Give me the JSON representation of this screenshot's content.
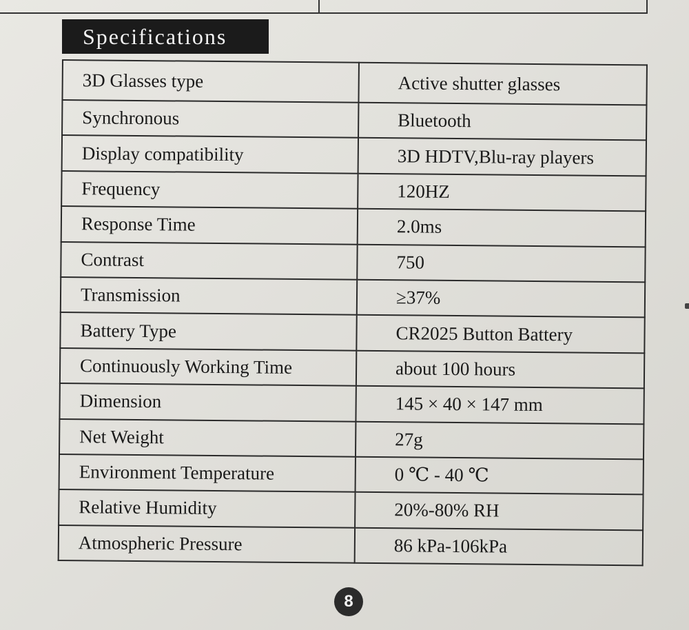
{
  "section_title": "Specifications",
  "specs": [
    {
      "label": "3D Glasses type",
      "value": "Active shutter glasses"
    },
    {
      "label": "Synchronous",
      "value": "Bluetooth"
    },
    {
      "label": "Display compatibility",
      "value": "3D HDTV,Blu-ray players"
    },
    {
      "label": "Frequency",
      "value": "120HZ"
    },
    {
      "label": "Response Time",
      "value": "2.0ms"
    },
    {
      "label": "Contrast",
      "value": "750"
    },
    {
      "label": "Transmission",
      "value": "≥37%"
    },
    {
      "label": "Battery Type",
      "value": "CR2025 Button Battery"
    },
    {
      "label": "Continuously Working Time",
      "value": "about 100 hours"
    },
    {
      "label": "Dimension",
      "value": "145 × 40 × 147 mm"
    },
    {
      "label": "Net Weight",
      "value": "27g"
    },
    {
      "label": "Environment Temperature",
      "value": "0 ℃ - 40 ℃"
    },
    {
      "label": "Relative Humidity",
      "value": "20%-80% RH"
    },
    {
      "label": "Atmospheric Pressure",
      "value": "86 kPa-106kPa"
    }
  ],
  "page_number": "8"
}
